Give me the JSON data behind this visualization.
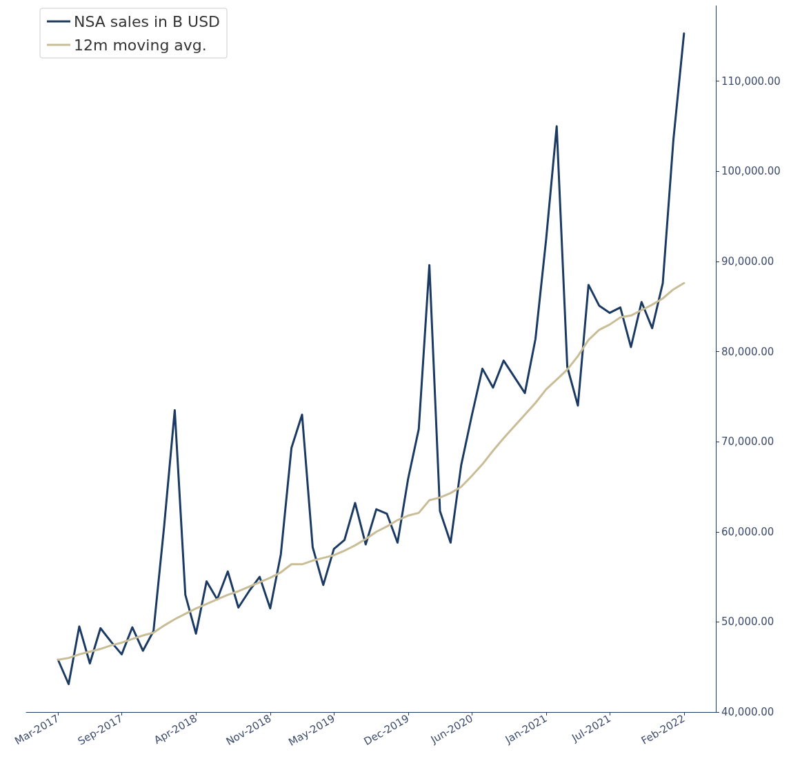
{
  "chart_data": {
    "type": "line",
    "x": [
      "2017-03",
      "2017-04",
      "2017-05",
      "2017-06",
      "2017-07",
      "2017-08",
      "2017-09",
      "2017-10",
      "2017-11",
      "2017-12",
      "2018-01",
      "2018-02",
      "2018-03",
      "2018-04",
      "2018-05",
      "2018-06",
      "2018-07",
      "2018-08",
      "2018-09",
      "2018-10",
      "2018-11",
      "2018-12",
      "2019-01",
      "2019-02",
      "2019-03",
      "2019-04",
      "2019-05",
      "2019-06",
      "2019-07",
      "2019-08",
      "2019-09",
      "2019-10",
      "2019-11",
      "2019-12",
      "2020-01",
      "2020-02",
      "2020-03",
      "2020-04",
      "2020-05",
      "2020-06",
      "2020-07",
      "2020-08",
      "2020-09",
      "2020-10",
      "2020-11",
      "2020-12",
      "2021-01",
      "2021-02",
      "2021-03",
      "2021-04",
      "2021-05",
      "2021-06",
      "2021-07",
      "2021-08",
      "2021-09",
      "2021-10",
      "2021-11",
      "2021-12",
      "2022-01",
      "2022-02"
    ],
    "series": [
      {
        "name": "NSA sales in B USD",
        "color": "#1b3a63",
        "values": [
          45800,
          43100,
          49500,
          45400,
          49300,
          47800,
          46400,
          49400,
          46800,
          49000,
          60600,
          73500,
          53000,
          48700,
          54500,
          52500,
          55600,
          51600,
          53400,
          55000,
          51500,
          57500,
          69300,
          73000,
          58300,
          54100,
          58100,
          59100,
          63200,
          58600,
          62500,
          62000,
          58800,
          65900,
          71400,
          89600,
          62300,
          58800,
          67400,
          72900,
          78100,
          76000,
          79000,
          77200,
          75400,
          81400,
          92400,
          105000,
          78300,
          74000,
          87400,
          85100,
          84300,
          84900,
          80500,
          85500,
          82600,
          87600,
          103500,
          115300
        ]
      },
      {
        "name": "12m moving avg.",
        "color": "#c8bd96",
        "values": [
          45800,
          46000,
          46400,
          46700,
          47000,
          47400,
          47700,
          48100,
          48500,
          48800,
          49600,
          50300,
          50900,
          51500,
          52000,
          52500,
          53000,
          53400,
          53900,
          54400,
          54900,
          55500,
          56400,
          56400,
          56800,
          57100,
          57400,
          57900,
          58500,
          59200,
          60000,
          60600,
          61300,
          61800,
          62100,
          63500,
          63800,
          64300,
          65000,
          66200,
          67500,
          69000,
          70400,
          71700,
          73000,
          74300,
          75800,
          76900,
          78000,
          79500,
          81300,
          82400,
          83000,
          83800,
          84000,
          84600,
          85200,
          85900,
          86900,
          87600
        ]
      }
    ],
    "xlim": [
      "2016-12",
      "2022-05"
    ],
    "xticks": [
      {
        "value": "2017-03",
        "label": "Mar-2017"
      },
      {
        "value": "2017-09",
        "label": "Sep-2017"
      },
      {
        "value": "2018-04",
        "label": "Apr-2018"
      },
      {
        "value": "2018-11",
        "label": "Nov-2018"
      },
      {
        "value": "2019-05",
        "label": "May-2019"
      },
      {
        "value": "2019-12",
        "label": "Dec-2019"
      },
      {
        "value": "2020-06",
        "label": "Jun-2020"
      },
      {
        "value": "2021-01",
        "label": "Jan-2021"
      },
      {
        "value": "2021-07",
        "label": "Jul-2021"
      },
      {
        "value": "2022-02",
        "label": "Feb-2022"
      }
    ],
    "ylim": [
      40000,
      118400
    ],
    "yticks": [
      {
        "value": 40000,
        "label": "40,000.00"
      },
      {
        "value": 50000,
        "label": "50,000.00"
      },
      {
        "value": 60000,
        "label": "60,000.00"
      },
      {
        "value": 70000,
        "label": "70,000.00"
      },
      {
        "value": 80000,
        "label": "80,000.00"
      },
      {
        "value": 90000,
        "label": "90,000.00"
      },
      {
        "value": 100000,
        "label": "100,000.00"
      },
      {
        "value": 110000,
        "label": "110,000.00"
      }
    ],
    "grid": false,
    "legend": "top left",
    "marker": "none",
    "line_style": "solid"
  }
}
